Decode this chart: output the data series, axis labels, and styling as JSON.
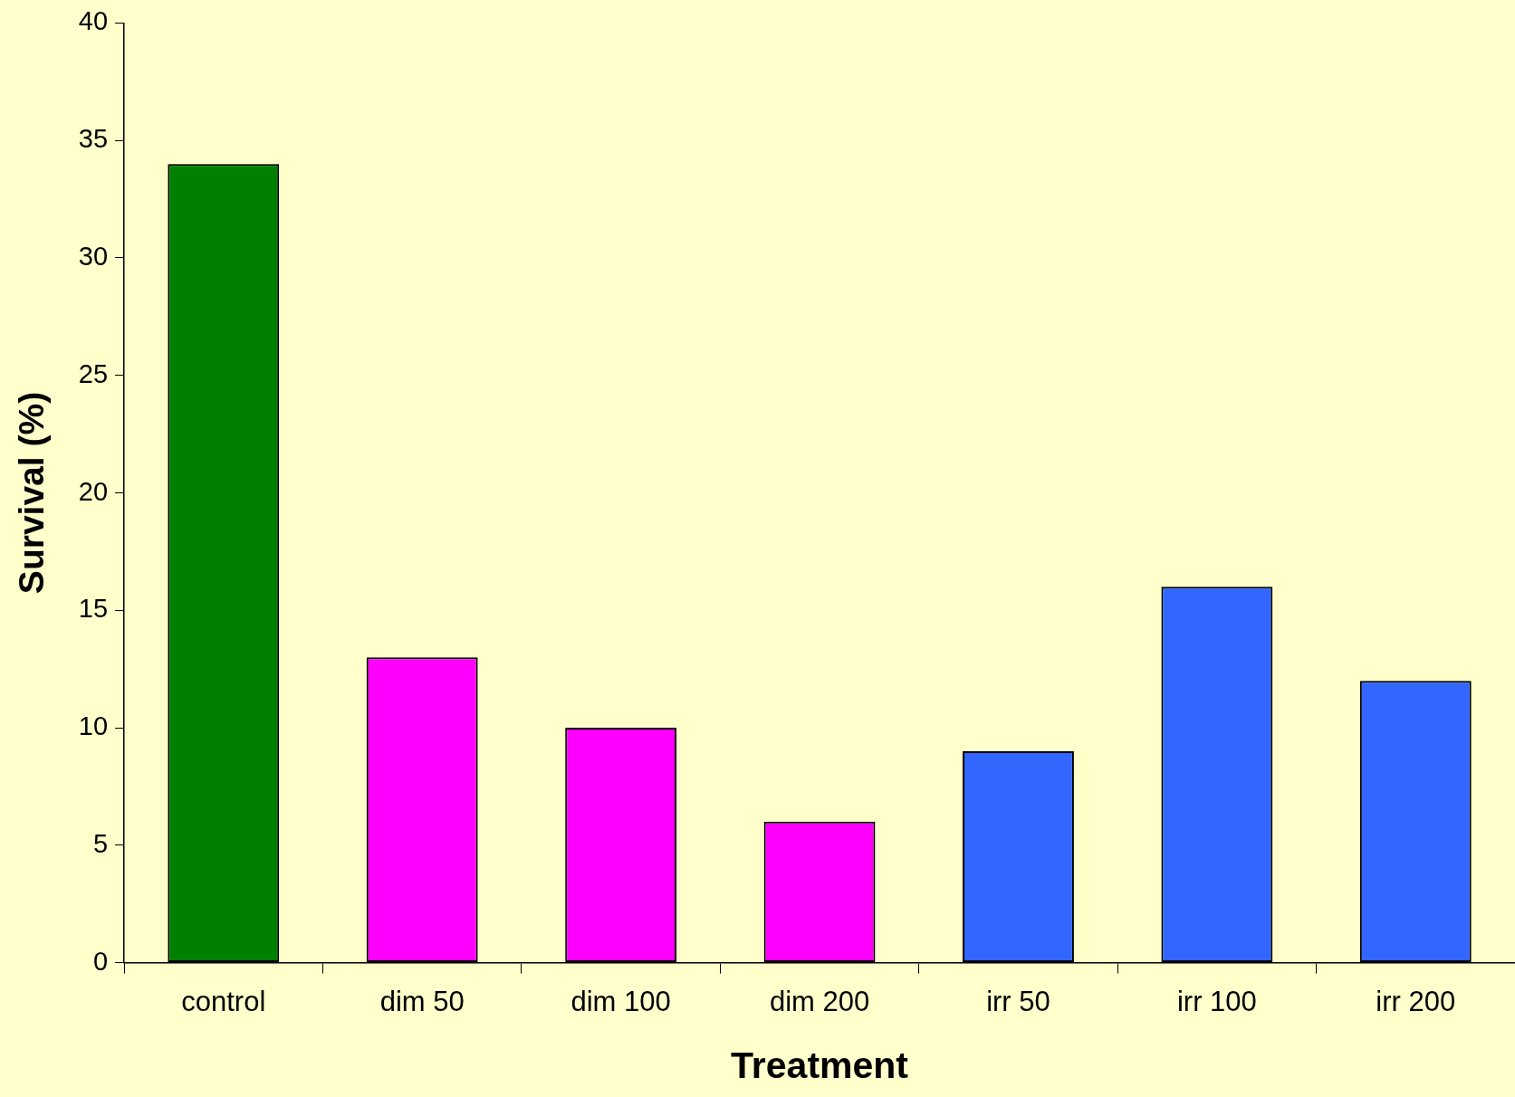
{
  "chart_data": {
    "type": "bar",
    "xlabel": "Treatment",
    "ylabel": "Survival (%)",
    "categories": [
      "control",
      "dim 50",
      "dim 100",
      "dim 200",
      "irr 50",
      "irr 100",
      "irr 200"
    ],
    "values": [
      34,
      13,
      10,
      6,
      9,
      16,
      12
    ],
    "colors": [
      "#008000",
      "#ff00ff",
      "#ff00ff",
      "#ff00ff",
      "#3366ff",
      "#3366ff",
      "#3366ff"
    ],
    "ylim": [
      0,
      40
    ],
    "yticks": [
      0,
      5,
      10,
      15,
      20,
      25,
      30,
      35,
      40
    ],
    "grid": false,
    "legend": false
  }
}
